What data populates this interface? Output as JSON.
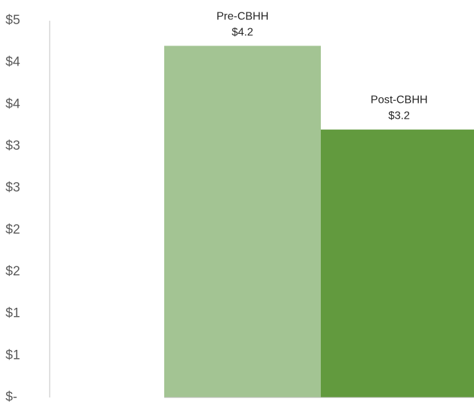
{
  "chart_data": {
    "type": "bar",
    "title": "",
    "xlabel": "",
    "ylabel": "",
    "ylim": [
      0,
      4.5
    ],
    "y_tick_values": [
      0,
      0.5,
      1,
      1.5,
      2,
      2.5,
      3,
      3.5,
      4,
      4.5
    ],
    "y_tick_labels": [
      "$-",
      "$1",
      "$1",
      "$2",
      "$2",
      "$3",
      "$3",
      "$4",
      "$4",
      "$5"
    ],
    "categories": [
      "Pre-CBHH",
      "Post-CBHH"
    ],
    "values": [
      4.2,
      3.2
    ],
    "value_labels": [
      "$4.2",
      "$3.2"
    ],
    "bar_colors": [
      "#a3c493",
      "#629a3e"
    ],
    "axis_color": "#bfbfbf",
    "grid": false,
    "legend": "none",
    "data_label_position": "above-bar"
  }
}
